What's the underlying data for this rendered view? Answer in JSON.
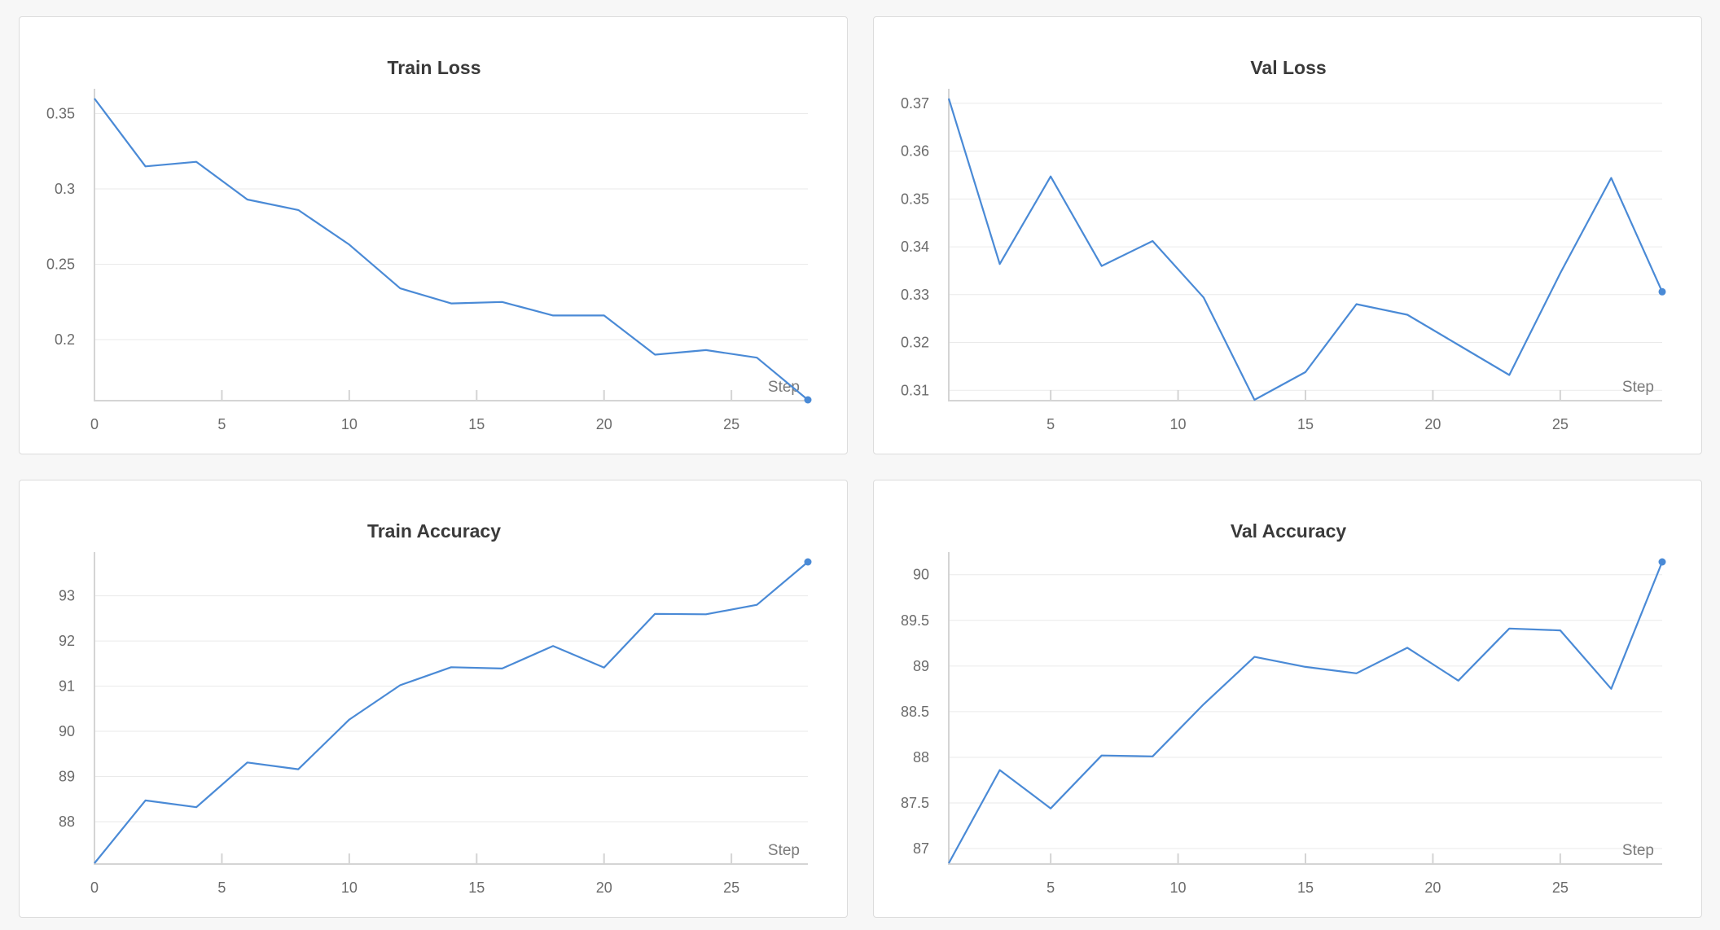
{
  "colors": {
    "line": "#4a8ad6",
    "grid": "#eaeaea",
    "axis": "#d4d4d4"
  },
  "chart_data": [
    {
      "type": "line",
      "title": "Train Loss",
      "xlabel": "Step",
      "ylabel": "",
      "xlim": [
        0,
        28
      ],
      "ylim": [
        0.16,
        0.36
      ],
      "xticks": [
        0,
        5,
        10,
        15,
        20,
        25
      ],
      "xtick_labels": [
        "0",
        "5",
        "10",
        "15",
        "20",
        "25"
      ],
      "yticks": [
        0.2,
        0.25,
        0.3,
        0.35
      ],
      "ytick_labels": [
        "0.2",
        "0.25",
        "0.3",
        "0.35"
      ],
      "grid": true,
      "series": [
        {
          "x": [
            0,
            2,
            4,
            6,
            8,
            10,
            12,
            14,
            16,
            18,
            20,
            22,
            24,
            26,
            28
          ],
          "y": [
            0.36,
            0.315,
            0.318,
            0.293,
            0.286,
            0.263,
            0.234,
            0.224,
            0.225,
            0.216,
            0.216,
            0.19,
            0.193,
            0.188,
            0.16
          ]
        }
      ]
    },
    {
      "type": "line",
      "title": "Val Loss",
      "xlabel": "Step",
      "ylabel": "",
      "xlim": [
        1,
        29
      ],
      "ylim": [
        0.308,
        0.371
      ],
      "xticks": [
        5,
        10,
        15,
        20,
        25
      ],
      "xtick_labels": [
        "5",
        "10",
        "15",
        "20",
        "25"
      ],
      "yticks": [
        0.31,
        0.32,
        0.33,
        0.34,
        0.35,
        0.36,
        0.37
      ],
      "ytick_labels": [
        "0.31",
        "0.32",
        "0.33",
        "0.34",
        "0.35",
        "0.36",
        "0.37"
      ],
      "grid": true,
      "series": [
        {
          "x": [
            1,
            3,
            5,
            7,
            9,
            11,
            13,
            15,
            17,
            19,
            21,
            23,
            25,
            27,
            29
          ],
          "y": [
            0.371,
            0.3364,
            0.3547,
            0.336,
            0.3412,
            0.3294,
            0.308,
            0.3138,
            0.328,
            0.3258,
            0.3195,
            0.3132,
            0.3345,
            0.3544,
            0.3306
          ]
        }
      ]
    },
    {
      "type": "line",
      "title": "Train Accuracy",
      "xlabel": "Step",
      "ylabel": "",
      "xlim": [
        0,
        28
      ],
      "ylim": [
        87.08,
        93.75
      ],
      "xticks": [
        0,
        5,
        10,
        15,
        20,
        25
      ],
      "xtick_labels": [
        "0",
        "5",
        "10",
        "15",
        "20",
        "25"
      ],
      "yticks": [
        88,
        89,
        90,
        91,
        92,
        93
      ],
      "ytick_labels": [
        "88",
        "89",
        "90",
        "91",
        "92",
        "93"
      ],
      "grid": true,
      "series": [
        {
          "x": [
            0,
            2,
            4,
            6,
            8,
            10,
            12,
            14,
            16,
            18,
            20,
            22,
            24,
            26,
            28
          ],
          "y": [
            87.08,
            88.47,
            88.32,
            89.31,
            89.16,
            90.26,
            91.02,
            91.42,
            91.39,
            91.89,
            91.41,
            92.6,
            92.59,
            92.8,
            93.75
          ]
        }
      ]
    },
    {
      "type": "line",
      "title": "Val Accuracy",
      "xlabel": "Step",
      "ylabel": "",
      "xlim": [
        1,
        29
      ],
      "ylim": [
        86.84,
        90.14
      ],
      "xticks": [
        5,
        10,
        15,
        20,
        25
      ],
      "xtick_labels": [
        "5",
        "10",
        "15",
        "20",
        "25"
      ],
      "yticks": [
        87,
        87.5,
        88,
        88.5,
        89,
        89.5,
        90
      ],
      "ytick_labels": [
        "87",
        "87.5",
        "88",
        "88.5",
        "89",
        "89.5",
        "90"
      ],
      "grid": true,
      "series": [
        {
          "x": [
            1,
            3,
            5,
            7,
            9,
            11,
            13,
            15,
            17,
            19,
            21,
            23,
            25,
            27,
            29
          ],
          "y": [
            86.84,
            87.86,
            87.44,
            88.02,
            88.01,
            88.58,
            89.1,
            88.99,
            88.92,
            89.2,
            88.84,
            89.41,
            89.39,
            88.75,
            90.14
          ]
        }
      ]
    }
  ]
}
